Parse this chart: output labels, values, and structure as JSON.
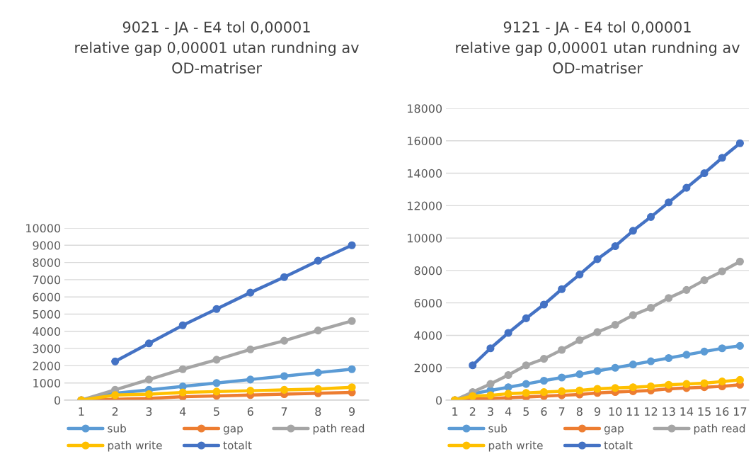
{
  "chart_data": [
    {
      "type": "line",
      "title": "9021 - JA - E4 tol 0,00001\nrelative gap 0,00001 utan rundning av\nOD-matriser",
      "categories": [
        "1",
        "2",
        "3",
        "4",
        "5",
        "6",
        "7",
        "8",
        "9"
      ],
      "ylim": [
        0,
        10000
      ],
      "yticks": [
        0,
        1000,
        2000,
        3000,
        4000,
        5000,
        6000,
        7000,
        8000,
        9000,
        10000
      ],
      "grid": "y",
      "legend": "bottom",
      "marker": "circle",
      "series": [
        {
          "name": "sub",
          "color": "#5b9bd5",
          "values": [
            0,
            400,
            600,
            800,
            1000,
            1200,
            1400,
            1600,
            1800
          ]
        },
        {
          "name": "gap",
          "color": "#ed7d31",
          "values": [
            0,
            50,
            100,
            200,
            250,
            300,
            350,
            400,
            450
          ]
        },
        {
          "name": "path read",
          "color": "#a5a5a5",
          "values": [
            0,
            600,
            1200,
            1800,
            2350,
            2950,
            3450,
            4050,
            4600
          ]
        },
        {
          "name": "path write",
          "color": "#ffc000",
          "values": [
            0,
            300,
            350,
            450,
            500,
            550,
            600,
            650,
            750
          ]
        },
        {
          "name": "totalt",
          "color": "#4472c4",
          "values": [
            null,
            2250,
            3300,
            4350,
            5300,
            6250,
            7150,
            8100,
            9000
          ]
        }
      ]
    },
    {
      "type": "line",
      "title": "9121 - JA - E4 tol 0,00001\nrelative gap 0,00001 utan rundning av\nOD-matriser",
      "categories": [
        "1",
        "2",
        "3",
        "4",
        "5",
        "6",
        "7",
        "8",
        "9",
        "10",
        "11",
        "12",
        "13",
        "14",
        "15",
        "16",
        "17"
      ],
      "ylim": [
        0,
        18000
      ],
      "yticks": [
        0,
        2000,
        4000,
        6000,
        8000,
        10000,
        12000,
        14000,
        16000,
        18000
      ],
      "grid": "y",
      "legend": "bottom",
      "marker": "circle",
      "series": [
        {
          "name": "sub",
          "color": "#5b9bd5",
          "values": [
            0,
            400,
            600,
            800,
            1000,
            1200,
            1400,
            1600,
            1800,
            2000,
            2200,
            2400,
            2600,
            2800,
            3000,
            3200,
            3350
          ]
        },
        {
          "name": "gap",
          "color": "#ed7d31",
          "values": [
            0,
            100,
            100,
            150,
            200,
            250,
            300,
            350,
            450,
            500,
            550,
            600,
            700,
            750,
            800,
            850,
            950
          ]
        },
        {
          "name": "path read",
          "color": "#a5a5a5",
          "values": [
            0,
            500,
            1000,
            1550,
            2150,
            2550,
            3100,
            3700,
            4200,
            4650,
            5250,
            5700,
            6300,
            6800,
            7400,
            7950,
            8550
          ]
        },
        {
          "name": "path write",
          "color": "#ffc000",
          "values": [
            0,
            250,
            300,
            400,
            450,
            500,
            550,
            600,
            700,
            750,
            800,
            850,
            950,
            1000,
            1050,
            1150,
            1250
          ]
        },
        {
          "name": "totalt",
          "color": "#4472c4",
          "values": [
            null,
            2150,
            3200,
            4150,
            5050,
            5900,
            6850,
            7750,
            8700,
            9500,
            10450,
            11300,
            12200,
            13100,
            14000,
            14950,
            15850
          ]
        }
      ]
    }
  ]
}
